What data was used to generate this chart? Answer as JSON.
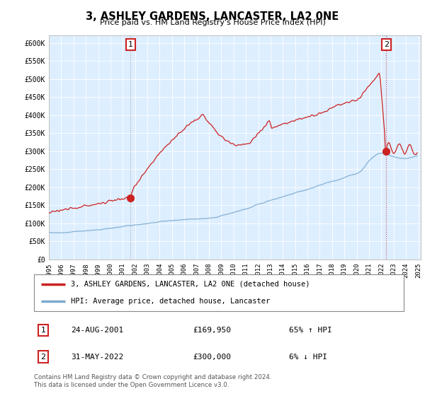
{
  "title": "3, ASHLEY GARDENS, LANCASTER, LA2 0NE",
  "subtitle": "Price paid vs. HM Land Registry's House Price Index (HPI)",
  "hpi_color": "#7aaad0",
  "price_color": "#cc2222",
  "background_color": "#ffffff",
  "chart_bg_color": "#ddeeff",
  "grid_color": "#ffffff",
  "ylim": [
    0,
    620000
  ],
  "yticks": [
    0,
    50000,
    100000,
    150000,
    200000,
    250000,
    300000,
    350000,
    400000,
    450000,
    500000,
    550000,
    600000
  ],
  "ytick_labels": [
    "£0",
    "£50K",
    "£100K",
    "£150K",
    "£200K",
    "£250K",
    "£300K",
    "£350K",
    "£400K",
    "£450K",
    "£500K",
    "£550K",
    "£600K"
  ],
  "sale1_year": 2001.64,
  "sale1_price": 169950,
  "sale2_year": 2022.41,
  "sale2_price": 300000,
  "legend_entry1": "3, ASHLEY GARDENS, LANCASTER, LA2 0NE (detached house)",
  "legend_entry2": "HPI: Average price, detached house, Lancaster",
  "sale1_date": "24-AUG-2001",
  "sale2_date": "31-MAY-2022",
  "sale1_pct": "65% ↑ HPI",
  "sale2_pct": "6% ↓ HPI",
  "footer": "Contains HM Land Registry data © Crown copyright and database right 2024.\nThis data is licensed under the Open Government Licence v3.0."
}
